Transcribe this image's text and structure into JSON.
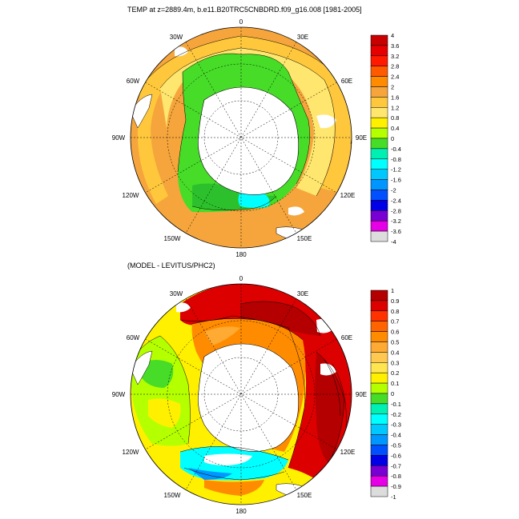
{
  "panels": [
    {
      "title": "TEMP at z=2889.4m, b.e11.B20TRC5CNBDRD.f09_g16.008 [1981-2005]",
      "lon_labels": [
        "0",
        "30E",
        "60E",
        "90E",
        "120E",
        "150E",
        "180",
        "150W",
        "120W",
        "90W",
        "60W",
        "30W"
      ],
      "colorbar": {
        "labels": [
          "4",
          "3.6",
          "3.2",
          "2.8",
          "2.4",
          "2",
          "1.6",
          "1.2",
          "0.8",
          "0.4",
          "0",
          "-0.4",
          "-0.8",
          "-1.2",
          "-1.6",
          "-2",
          "-2.4",
          "-2.8",
          "-3.2",
          "-3.6",
          "-4"
        ],
        "colors": [
          "#c80000",
          "#e60000",
          "#ff1a00",
          "#ff5a00",
          "#ff8c00",
          "#f5a53c",
          "#ffc83c",
          "#ffe66e",
          "#fff000",
          "#b4ff00",
          "#46dc28",
          "#00f0b4",
          "#00ffff",
          "#00c8ff",
          "#0096ff",
          "#0050ff",
          "#0000e6",
          "#7800d2",
          "#e600e6",
          "#dcdcdc",
          "#787878"
        ]
      }
    },
    {
      "title": "(MODEL - LEVITUS/PHC2)",
      "lon_labels": [
        "0",
        "30E",
        "60E",
        "90E",
        "120E",
        "150E",
        "180",
        "150W",
        "120W",
        "90W",
        "60W",
        "30W"
      ],
      "colorbar": {
        "labels": [
          "1",
          "0.9",
          "0.8",
          "0.7",
          "0.6",
          "0.5",
          "0.4",
          "0.3",
          "0.2",
          "0.1",
          "0",
          "-0.1",
          "-0.2",
          "-0.3",
          "-0.4",
          "-0.5",
          "-0.6",
          "-0.7",
          "-0.8",
          "-0.9",
          "-1"
        ],
        "colors": [
          "#b40000",
          "#dc0000",
          "#ff3200",
          "#ff6400",
          "#ff8c00",
          "#ffaa32",
          "#ffc850",
          "#ffe650",
          "#fff000",
          "#b4ff00",
          "#46dc28",
          "#00f0b4",
          "#00ffff",
          "#00c8ff",
          "#0096ff",
          "#0050ff",
          "#0000e6",
          "#7800d2",
          "#e600e6",
          "#dcdcdc",
          "#787878"
        ]
      }
    }
  ]
}
